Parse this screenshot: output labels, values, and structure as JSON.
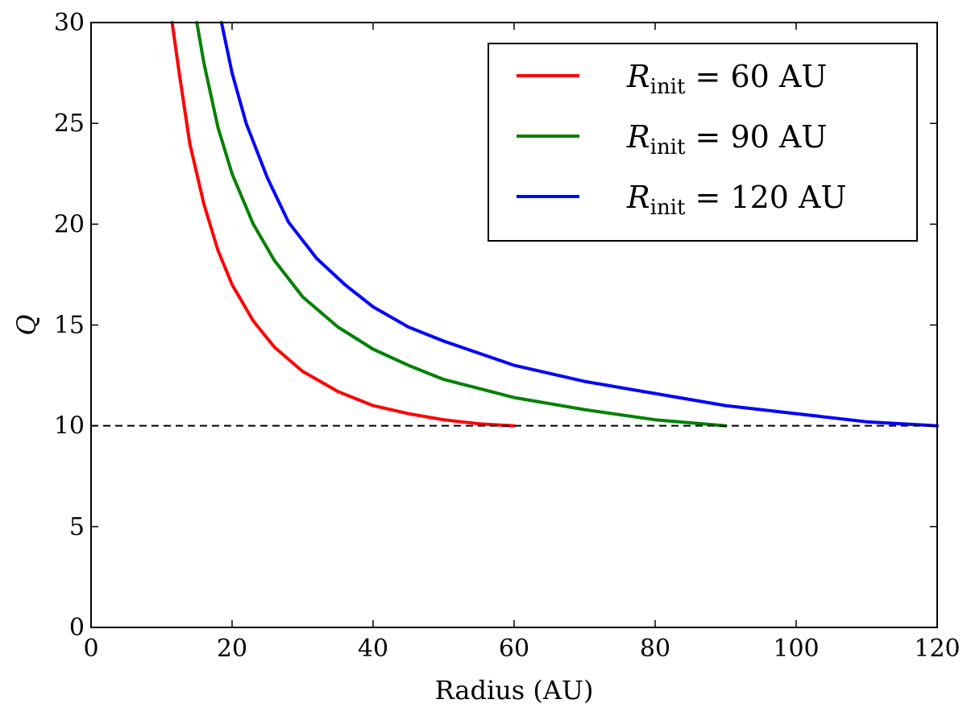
{
  "chart_data": {
    "type": "line",
    "title": "",
    "xlabel": "Radius (AU)",
    "ylabel": "Q",
    "xlim": [
      0,
      120
    ],
    "ylim": [
      0,
      30
    ],
    "xticks": [
      "0",
      "20",
      "40",
      "60",
      "80",
      "100",
      "120"
    ],
    "yticks": [
      "0",
      "5",
      "10",
      "15",
      "20",
      "25",
      "30"
    ],
    "grid": false,
    "legend_position": "top-right",
    "reference_line": {
      "y": 10,
      "style": "dashed",
      "color": "#000000"
    },
    "series": [
      {
        "name": "R_init = 60 AU",
        "legend": {
          "symbol": "R",
          "subscript": "init",
          "rest": " = 60 AU"
        },
        "color": "#ff0000",
        "x": [
          11.5,
          12.5,
          14,
          16,
          18,
          20,
          23,
          26,
          30,
          35,
          40,
          45,
          50,
          55,
          60
        ],
        "y": [
          30.0,
          27.5,
          24.0,
          21.0,
          18.7,
          17.0,
          15.2,
          13.9,
          12.7,
          11.7,
          11.0,
          10.6,
          10.3,
          10.1,
          10.0
        ]
      },
      {
        "name": "R_init = 90 AU",
        "legend": {
          "symbol": "R",
          "subscript": "init",
          "rest": " = 90 AU"
        },
        "color": "#008000",
        "x": [
          15,
          16,
          18,
          20,
          23,
          26,
          30,
          35,
          40,
          45,
          50,
          60,
          70,
          80,
          90
        ],
        "y": [
          30.0,
          28.0,
          24.8,
          22.5,
          20.0,
          18.2,
          16.4,
          14.9,
          13.8,
          13.0,
          12.3,
          11.4,
          10.8,
          10.3,
          10.0
        ]
      },
      {
        "name": "R_init = 120 AU",
        "legend": {
          "symbol": "R",
          "subscript": "init",
          "rest": " = 120 AU"
        },
        "color": "#0000ff",
        "x": [
          18.5,
          20,
          22,
          25,
          28,
          32,
          36,
          40,
          45,
          50,
          60,
          70,
          80,
          90,
          100,
          110,
          120
        ],
        "y": [
          30.0,
          27.5,
          25.0,
          22.3,
          20.1,
          18.3,
          17.0,
          15.9,
          14.9,
          14.2,
          13.0,
          12.2,
          11.6,
          11.0,
          10.6,
          10.2,
          10.0
        ]
      }
    ]
  }
}
